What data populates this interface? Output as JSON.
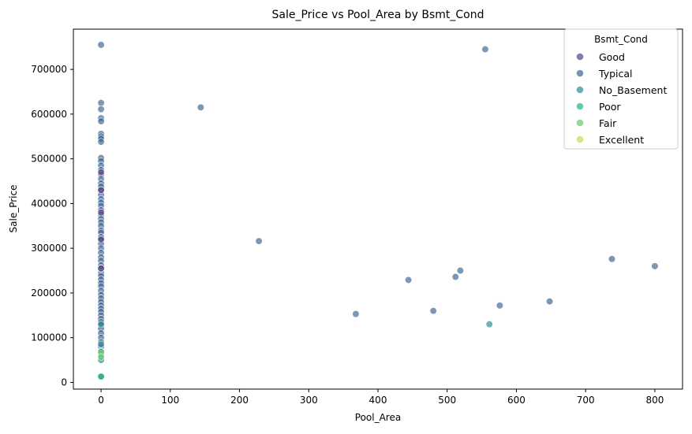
{
  "chart_data": {
    "type": "scatter",
    "title": "Sale_Price vs Pool_Area by Bsmt_Cond",
    "xlabel": "Pool_Area",
    "ylabel": "Sale_Price",
    "xlim": [
      -40,
      840
    ],
    "ylim": [
      -15000,
      790000
    ],
    "xticks": [
      0,
      100,
      200,
      300,
      400,
      500,
      600,
      700,
      800
    ],
    "yticks": [
      0,
      100000,
      200000,
      300000,
      400000,
      500000,
      600000,
      700000
    ],
    "grid": false,
    "legend": {
      "title": "Bsmt_Cond",
      "placement": "top-right",
      "entries": [
        {
          "name": "Good",
          "color": "#5b3c8c"
        },
        {
          "name": "Typical",
          "color": "#3f6592"
        },
        {
          "name": "No_Basement",
          "color": "#2e8a91"
        },
        {
          "name": "Poor",
          "color": "#25b18a"
        },
        {
          "name": "Fair",
          "color": "#66c96e"
        },
        {
          "name": "Excellent",
          "color": "#c3df4c"
        }
      ]
    },
    "series": [
      {
        "name": "Typical",
        "color": "#3f6592",
        "x": [
          0,
          0,
          0,
          0,
          0,
          0,
          0,
          0,
          0,
          0,
          0,
          0,
          0,
          0,
          0,
          0,
          0,
          0,
          0,
          0,
          0,
          0,
          0,
          0,
          0,
          0,
          0,
          0,
          0,
          0,
          0,
          0,
          0,
          0,
          0,
          0,
          0,
          0,
          0,
          0,
          0,
          0,
          0,
          0,
          0,
          0,
          0,
          0,
          0,
          0,
          0,
          0,
          0,
          0,
          0,
          0,
          0,
          0,
          0,
          0,
          144,
          228,
          368,
          444,
          480,
          512,
          519,
          555,
          576,
          648,
          738,
          800
        ],
        "y": [
          755000,
          625000,
          611000,
          591000,
          584000,
          556000,
          550000,
          545000,
          538000,
          502000,
          495000,
          485000,
          475000,
          465000,
          455000,
          445000,
          438000,
          430000,
          420000,
          410000,
          402000,
          395000,
          385000,
          375000,
          366000,
          358000,
          350000,
          340000,
          335000,
          325000,
          318000,
          310000,
          300000,
          290000,
          280000,
          272000,
          262000,
          255000,
          245000,
          238000,
          230000,
          222000,
          215000,
          205000,
          196000,
          188000,
          180000,
          172000,
          165000,
          158000,
          150000,
          142000,
          135000,
          128000,
          120000,
          110000,
          100000,
          90000,
          80000,
          70000,
          615000,
          316000,
          153000,
          229000,
          160000,
          236000,
          250000,
          745000,
          172000,
          181000,
          276000,
          260000
        ]
      },
      {
        "name": "Good",
        "color": "#5b3c8c",
        "x": [
          0,
          0,
          0,
          0,
          0
        ],
        "y": [
          470000,
          430000,
          380000,
          320000,
          255000
        ]
      },
      {
        "name": "No_Basement",
        "color": "#2e8a91",
        "x": [
          0,
          0,
          0,
          0,
          561
        ],
        "y": [
          130000,
          85000,
          50000,
          13000,
          130000
        ]
      },
      {
        "name": "Poor",
        "color": "#25b18a",
        "x": [
          0,
          0
        ],
        "y": [
          62000,
          13000
        ]
      },
      {
        "name": "Fair",
        "color": "#66c96e",
        "x": [
          0,
          0
        ],
        "y": [
          68000,
          57000
        ]
      },
      {
        "name": "Excellent",
        "color": "#c3df4c",
        "x": [],
        "y": []
      }
    ]
  }
}
